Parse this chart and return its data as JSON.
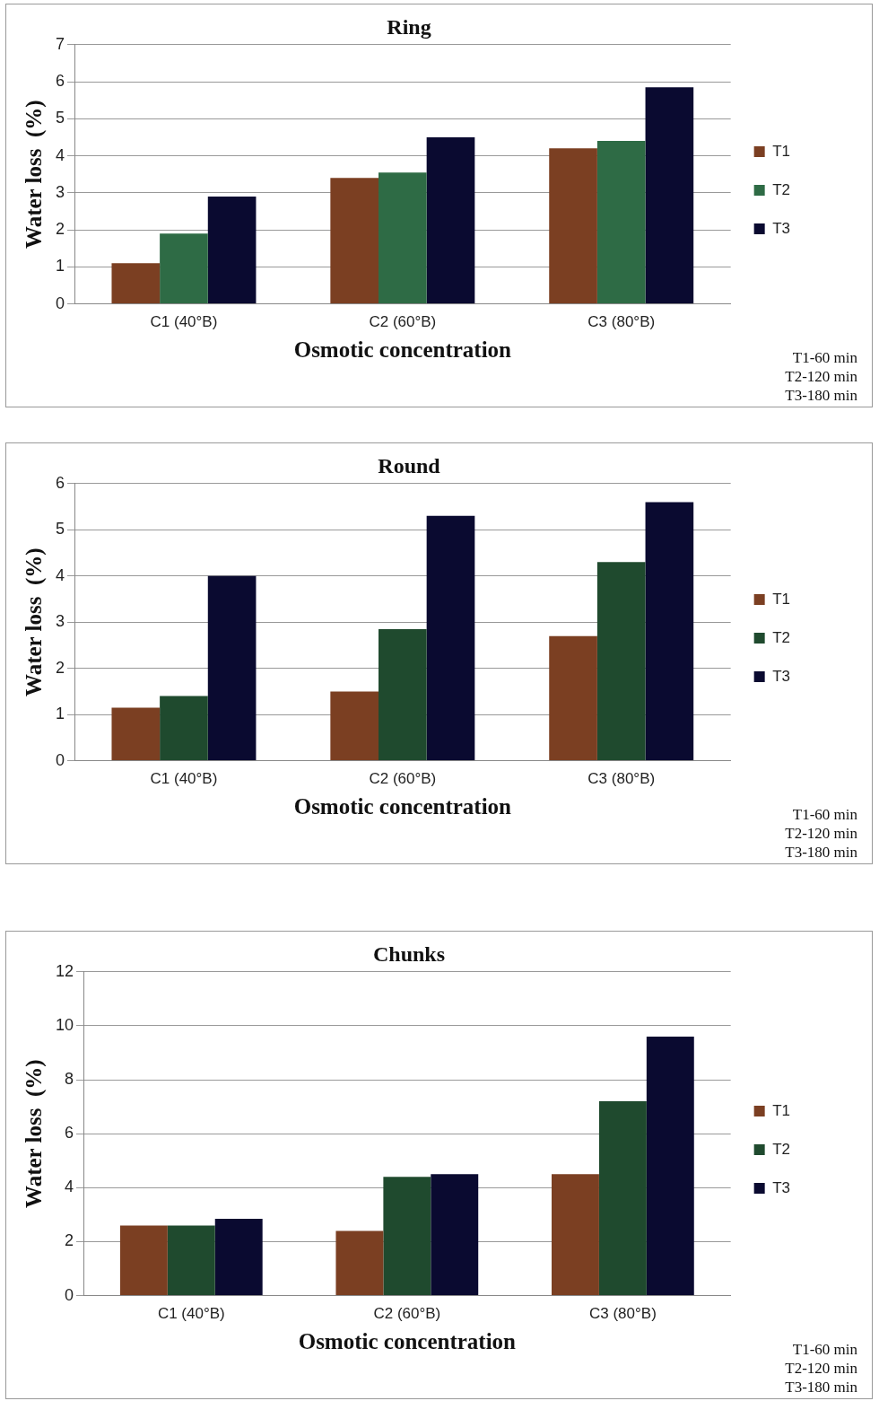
{
  "chart_data": [
    {
      "type": "bar",
      "title": "Ring",
      "xlabel": "Osmotic concentration",
      "ylabel": "Water loss  (%)",
      "categories": [
        "C1 (40°B)",
        "C2 (60°B)",
        "C3 (80°B)"
      ],
      "series": [
        {
          "name": "T1",
          "color": "#7b3f22",
          "values": [
            1.1,
            3.4,
            4.2
          ]
        },
        {
          "name": "T2",
          "color": "#2e6b45",
          "values": [
            1.9,
            3.55,
            4.4
          ]
        },
        {
          "name": "T3",
          "color": "#0a0a30",
          "values": [
            2.9,
            4.5,
            5.85
          ]
        }
      ],
      "ylim": [
        0,
        7
      ],
      "yticks": [
        0,
        1,
        2,
        3,
        4,
        5,
        6,
        7
      ],
      "grid": "y",
      "legend": "right",
      "annotations": [
        "T1-60 min",
        "T2-120 min",
        "T3-180 min"
      ]
    },
    {
      "type": "bar",
      "title": "Round",
      "xlabel": "Osmotic concentration",
      "ylabel": "Water loss  (%)",
      "categories": [
        "C1 (40°B)",
        "C2 (60°B)",
        "C3 (80°B)"
      ],
      "series": [
        {
          "name": "T1",
          "color": "#7b3f22",
          "values": [
            1.15,
            1.5,
            2.7
          ]
        },
        {
          "name": "T2",
          "color": "#1f4a2e",
          "values": [
            1.4,
            2.85,
            4.3
          ]
        },
        {
          "name": "T3",
          "color": "#0a0a30",
          "values": [
            4.0,
            5.3,
            5.6
          ]
        }
      ],
      "ylim": [
        0,
        6
      ],
      "yticks": [
        0,
        1,
        2,
        3,
        4,
        5,
        6
      ],
      "grid": "y",
      "legend": "right",
      "annotations": [
        "T1-60 min",
        "T2-120 min",
        "T3-180 min"
      ]
    },
    {
      "type": "bar",
      "title": "Chunks",
      "xlabel": "Osmotic concentration",
      "ylabel": "Water loss  (%)",
      "categories": [
        "C1 (40°B)",
        "C2 (60°B)",
        "C3 (80°B)"
      ],
      "series": [
        {
          "name": "T1",
          "color": "#7b3f22",
          "values": [
            2.6,
            2.4,
            4.5
          ]
        },
        {
          "name": "T2",
          "color": "#1f4a2e",
          "values": [
            2.6,
            4.4,
            7.2
          ]
        },
        {
          "name": "T3",
          "color": "#0a0a30",
          "values": [
            2.85,
            4.5,
            9.6
          ]
        }
      ],
      "ylim": [
        0,
        12
      ],
      "yticks": [
        0,
        2,
        4,
        6,
        8,
        10,
        12
      ],
      "grid": "y",
      "legend": "right",
      "annotations": [
        "T1-60 min",
        "T2-120 min",
        "T3-180 min"
      ]
    }
  ]
}
